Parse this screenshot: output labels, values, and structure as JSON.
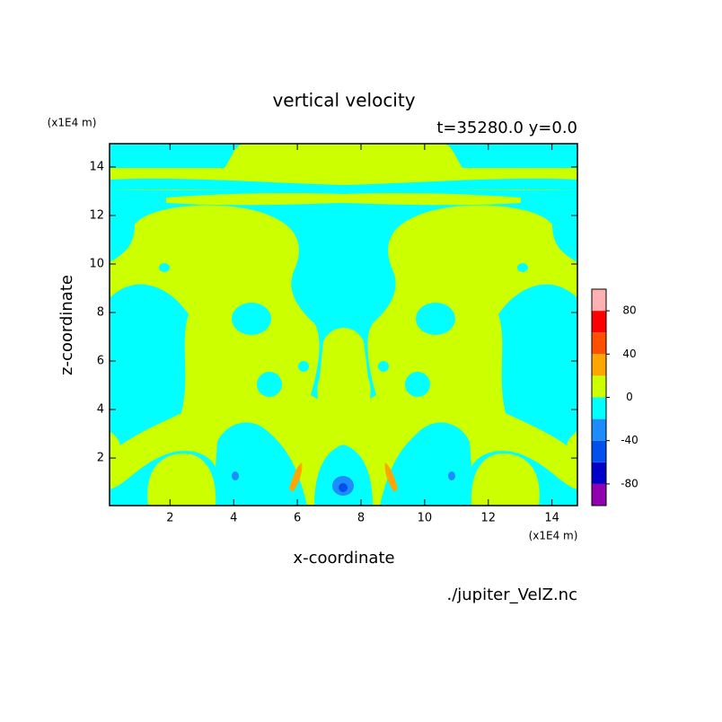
{
  "chart_data": {
    "type": "contour",
    "title": "vertical velocity",
    "subtitle": "t=35280.0 y=0.0",
    "x_label": "x-coordinate",
    "y_label": "z-coordinate",
    "x_unit": "(x1E4 m)",
    "y_unit": "(x1E4 m)",
    "source": "./jupiter_VelZ.nc",
    "xlim": [
      0.1,
      14.8
    ],
    "ylim": [
      0.04,
      14.96
    ],
    "xticks": [
      2,
      4,
      6,
      8,
      10,
      12,
      14
    ],
    "yticks": [
      2,
      4,
      6,
      8,
      10,
      12,
      14
    ],
    "levels": [
      -100,
      -80,
      -60,
      -40,
      -20,
      0,
      20,
      40,
      60,
      80,
      100
    ],
    "colors": [
      "#9000b0",
      "#0000c8",
      "#0050f0",
      "#1e8cff",
      "#00ffff",
      "#ccff00",
      "#ffa500",
      "#ff5000",
      "#ff0000",
      "#ffb0b0"
    ],
    "colorbar_ticks": [
      -80,
      -40,
      0,
      40,
      80
    ]
  }
}
